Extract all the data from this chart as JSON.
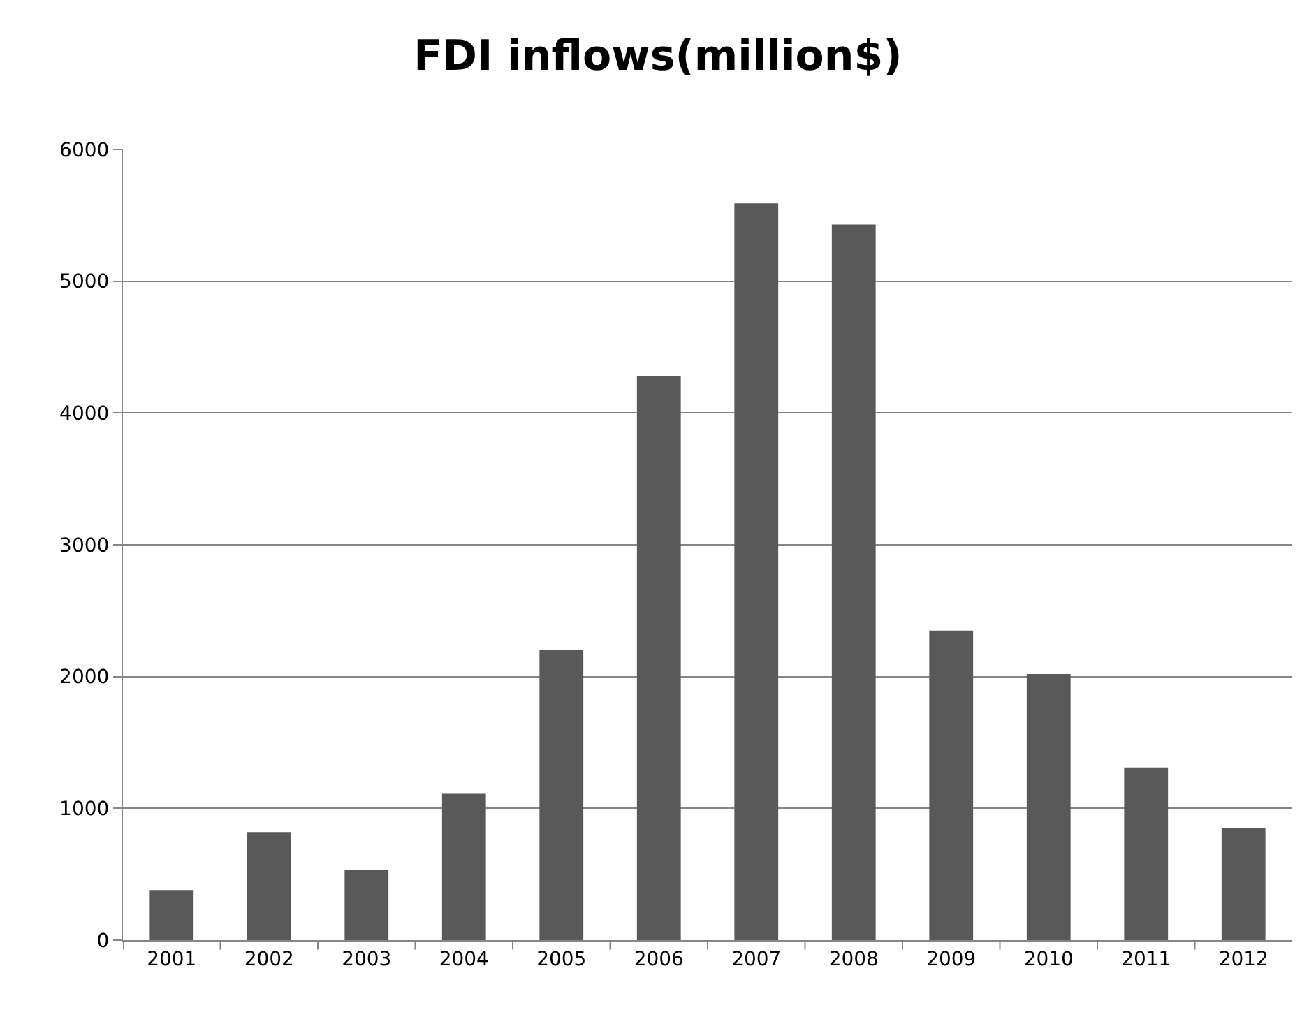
{
  "chart_data": {
    "type": "bar",
    "title": "FDI inflows(million$)",
    "categories": [
      "2001",
      "2002",
      "2003",
      "2004",
      "2005",
      "2006",
      "2007",
      "2008",
      "2009",
      "2010",
      "2011",
      "2012"
    ],
    "values": [
      380,
      820,
      530,
      1110,
      2200,
      4280,
      5590,
      5430,
      2350,
      2020,
      1310,
      850
    ],
    "color": "#595959",
    "ylim": [
      0,
      6000
    ],
    "yticks": [
      0,
      1000,
      2000,
      3000,
      4000,
      5000,
      6000
    ],
    "grid": "y"
  }
}
